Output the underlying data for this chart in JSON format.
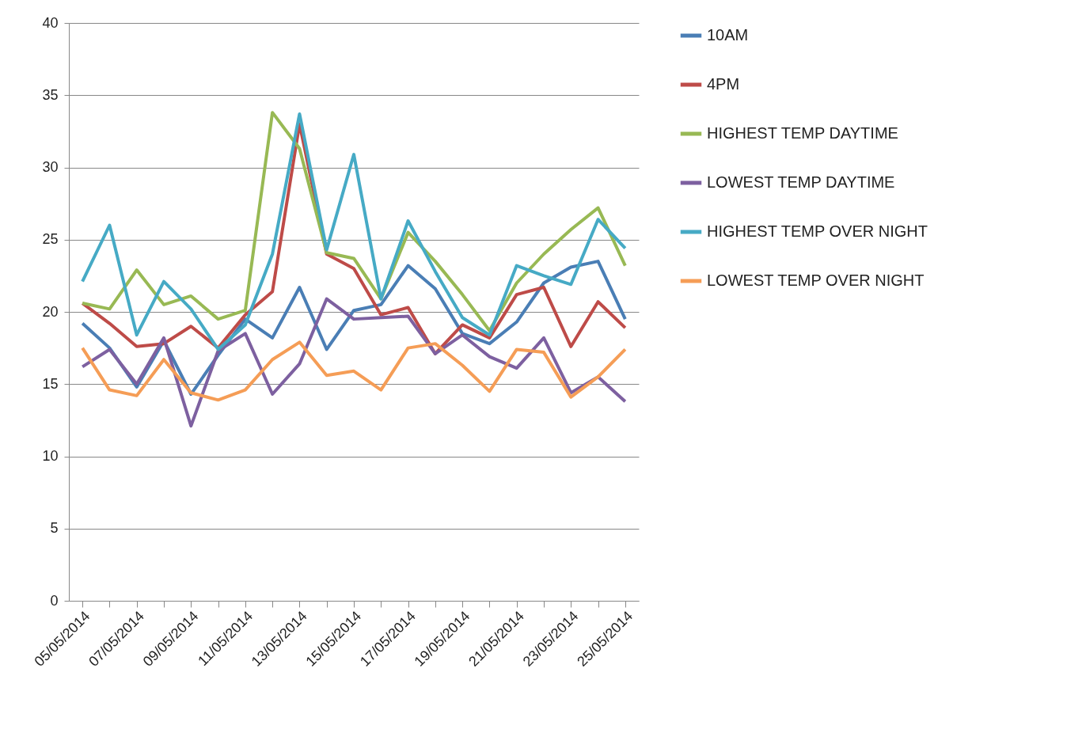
{
  "chart_data": {
    "type": "line",
    "categories": [
      "05/05/2014",
      null,
      "07/05/2014",
      null,
      "09/05/2014",
      null,
      "11/05/2014",
      null,
      "13/05/2014",
      null,
      "15/05/2014",
      null,
      "17/05/2014",
      null,
      "19/05/2014",
      null,
      "21/05/2014",
      null,
      "23/05/2014",
      null,
      "25/05/2014"
    ],
    "series": [
      {
        "name": "10AM",
        "color": "#4a7eb5",
        "values": [
          19.2,
          17.5,
          14.8,
          18,
          14.3,
          17,
          19.5,
          18.2,
          21.7,
          17.4,
          20.1,
          20.5,
          23.2,
          21.6,
          18.5,
          17.8,
          19.3,
          22,
          23.1,
          23.5,
          19.5
        ]
      },
      {
        "name": "4PM",
        "color": "#be4b48",
        "values": [
          20.6,
          19.2,
          17.6,
          17.8,
          19,
          17.5,
          19.8,
          21.4,
          33,
          24,
          23,
          19.8,
          20.3,
          17.1,
          19.1,
          18.2,
          21.2,
          21.7,
          17.6,
          20.7,
          18.9
        ]
      },
      {
        "name": "HIGHEST TEMP DAYTIME",
        "color": "#98b954",
        "values": [
          20.6,
          20.2,
          22.9,
          20.5,
          21.1,
          19.5,
          20.1,
          33.8,
          31.3,
          24.1,
          23.7,
          20.9,
          25.5,
          23.5,
          21.2,
          18.7,
          22,
          24,
          25.7,
          27.2,
          23.2
        ]
      },
      {
        "name": "LOWEST TEMP DAYTIME",
        "color": "#7d60a0",
        "values": [
          16.2,
          17.4,
          15,
          18.2,
          12.1,
          17.3,
          18.5,
          14.3,
          16.4,
          20.9,
          19.5,
          19.6,
          19.7,
          17.1,
          18.4,
          16.9,
          16.1,
          18.2,
          14.4,
          15.5,
          13.8
        ]
      },
      {
        "name": "HIGHEST TEMP OVER NIGHT",
        "color": "#46aac5",
        "values": [
          22.1,
          26,
          18.4,
          22.1,
          20.2,
          17.4,
          19.1,
          24,
          33.7,
          24.3,
          30.9,
          20.9,
          26.3,
          22.8,
          19.6,
          18.4,
          23.2,
          22.5,
          21.9,
          26.4,
          24.4
        ]
      },
      {
        "name": "LOWEST TEMP OVER NIGHT",
        "color": "#f59d56",
        "values": [
          17.5,
          14.6,
          14.2,
          16.7,
          14.4,
          13.9,
          14.6,
          16.7,
          17.9,
          15.6,
          15.9,
          14.6,
          17.5,
          17.8,
          16.3,
          14.5,
          17.4,
          17.2,
          14.1,
          15.5,
          17.4
        ]
      }
    ],
    "ylim": [
      0,
      40
    ],
    "yticks": [
      0,
      5,
      10,
      15,
      20,
      25,
      30,
      35,
      40
    ],
    "grid": "y",
    "legend": "right",
    "marker": "none",
    "line_style": "solid"
  }
}
